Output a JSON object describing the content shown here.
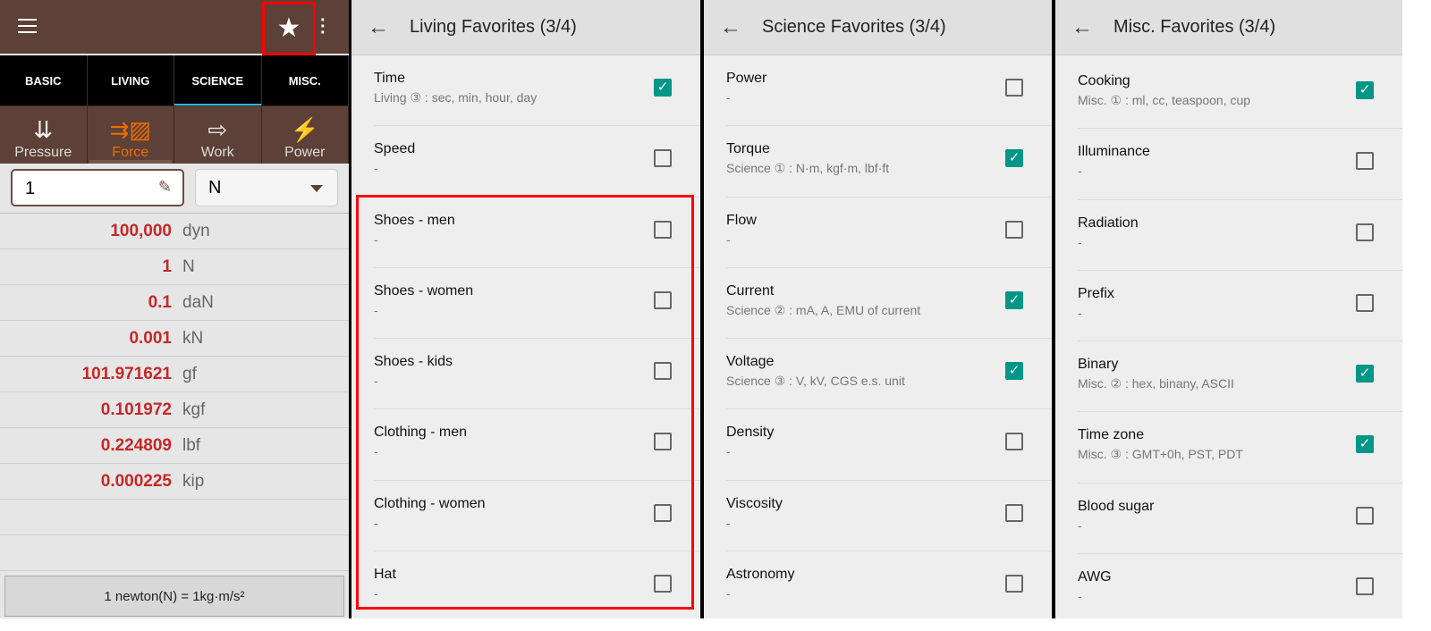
{
  "converter": {
    "tabs": [
      {
        "label": "BASIC"
      },
      {
        "label": "LIVING"
      },
      {
        "label": "SCIENCE",
        "selected": true
      },
      {
        "label": "MISC."
      }
    ],
    "categories": [
      {
        "label": "Pressure",
        "icon": "pressure-icon"
      },
      {
        "label": "Force",
        "icon": "force-icon",
        "selected": true
      },
      {
        "label": "Work",
        "icon": "work-icon"
      },
      {
        "label": "Power",
        "icon": "power-icon"
      }
    ],
    "input_value": "1",
    "unit": "N",
    "results": [
      {
        "v": "100,000",
        "u": "dyn"
      },
      {
        "v": "1",
        "u": "N"
      },
      {
        "v": "0.1",
        "u": "daN"
      },
      {
        "v": "0.001",
        "u": "kN"
      },
      {
        "v": "101.971621",
        "u": "gf"
      },
      {
        "v": "0.101972",
        "u": "kgf"
      },
      {
        "v": "0.224809",
        "u": "lbf"
      },
      {
        "v": "0.000225",
        "u": "kip"
      }
    ],
    "footer": "1 newton(N) = 1kg·m/s²",
    "accent": "#ef6c00",
    "header_color": "#5d4037"
  },
  "living": {
    "title": "Living Favorites (3/4)",
    "items": [
      {
        "t": "Time",
        "s": "Living ③ : sec, min, hour, day",
        "c": true
      },
      {
        "t": "Speed",
        "s": "-",
        "c": false
      },
      {
        "t": "Shoes - men",
        "s": "-",
        "c": false
      },
      {
        "t": "Shoes - women",
        "s": "-",
        "c": false
      },
      {
        "t": "Shoes - kids",
        "s": "-",
        "c": false
      },
      {
        "t": "Clothing - men",
        "s": "-",
        "c": false
      },
      {
        "t": "Clothing - women",
        "s": "-",
        "c": false
      },
      {
        "t": "Hat",
        "s": "-",
        "c": false
      }
    ]
  },
  "science": {
    "title": "Science Favorites (3/4)",
    "items": [
      {
        "t": "Power",
        "s": "-",
        "c": false
      },
      {
        "t": "Torque",
        "s": "Science ① : N·m, kgf·m, lbf·ft",
        "c": true
      },
      {
        "t": "Flow",
        "s": "-",
        "c": false
      },
      {
        "t": "Current",
        "s": "Science ② : mA, A, EMU of current",
        "c": true
      },
      {
        "t": "Voltage",
        "s": "Science ③ : V, kV, CGS e.s. unit",
        "c": true
      },
      {
        "t": "Density",
        "s": "-",
        "c": false
      },
      {
        "t": "Viscosity",
        "s": "-",
        "c": false
      },
      {
        "t": "Astronomy",
        "s": "-",
        "c": false
      }
    ]
  },
  "misc": {
    "title": "Misc. Favorites (3/4)",
    "items": [
      {
        "t": "Cooking",
        "s": "Misc. ① : ml, cc, teaspoon, cup",
        "c": true
      },
      {
        "t": "Illuminance",
        "s": "-",
        "c": false
      },
      {
        "t": "Radiation",
        "s": "-",
        "c": false
      },
      {
        "t": "Prefix",
        "s": "-",
        "c": false
      },
      {
        "t": "Binary",
        "s": "Misc. ② : hex, binany, ASCII",
        "c": true
      },
      {
        "t": "Time zone",
        "s": "Misc. ③ : GMT+0h, PST, PDT",
        "c": true
      },
      {
        "t": "Blood sugar",
        "s": "-",
        "c": false
      },
      {
        "t": "AWG",
        "s": "-",
        "c": false
      }
    ]
  },
  "checkbox_color": "#009688"
}
